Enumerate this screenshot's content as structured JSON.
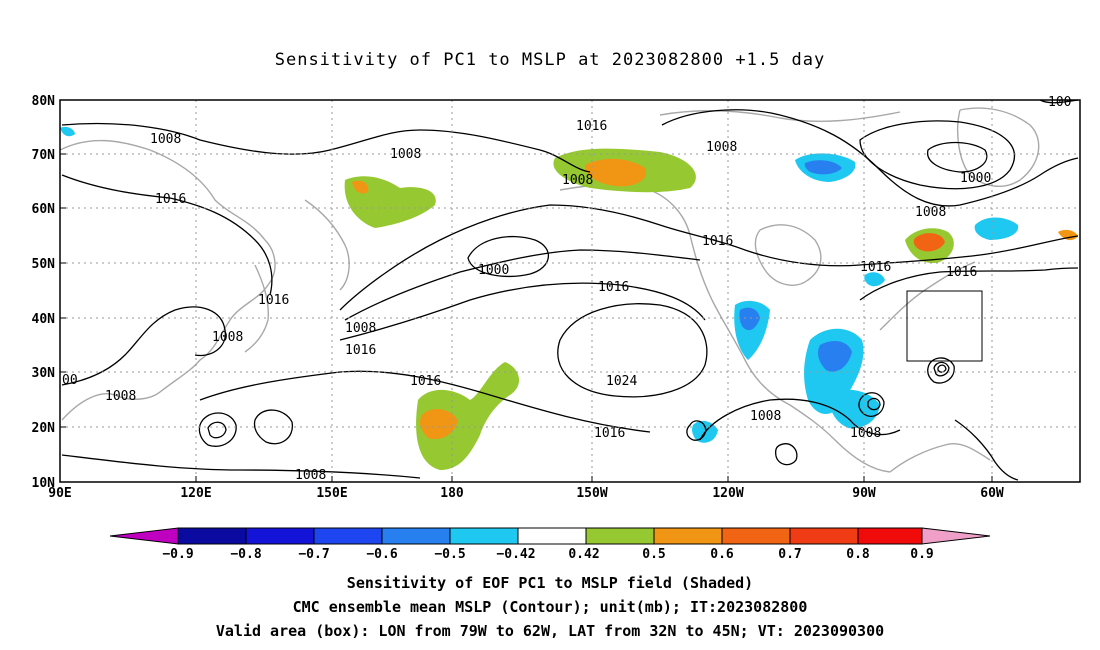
{
  "title": "Sensitivity of PC1 to MSLP at 2023082800 +1.5 day",
  "map": {
    "lon_labels": [
      "90E",
      "120E",
      "150E",
      "180",
      "150W",
      "120W",
      "90W",
      "60W"
    ],
    "lat_labels": [
      "80N",
      "70N",
      "60N",
      "50N",
      "40N",
      "30N",
      "20N",
      "10N"
    ],
    "contour_labels": [
      "1008",
      "1008",
      "1016",
      "1016",
      "1008",
      "1008",
      "1000",
      "1016",
      "1008",
      "1016",
      "1008",
      "1016",
      "1016",
      "1000",
      "1024",
      "1016",
      "1016",
      "1016",
      "1008",
      "1008",
      "1016",
      "1008",
      "1008",
      "00",
      "100"
    ],
    "valid_box": {
      "lon_from": "79W",
      "lon_to": "62W",
      "lat_from": "32N",
      "lat_to": "45N"
    }
  },
  "colorbar": {
    "labels": [
      "−0.9",
      "−0.8",
      "−0.7",
      "−0.6",
      "−0.5",
      "−0.42",
      "0.42",
      "0.5",
      "0.6",
      "0.7",
      "0.8",
      "0.9"
    ],
    "colors": [
      "#c000c0",
      "#0a0aa0",
      "#1414d8",
      "#1e46f0",
      "#2880f0",
      "#1ec8f0",
      "#ffffff",
      "#96c832",
      "#f09614",
      "#f06414",
      "#f03c14",
      "#f00a0a",
      "#f0a0c8"
    ]
  },
  "captions": [
    "Sensitivity of EOF PC1 to MSLP field (Shaded)",
    "CMC ensemble mean MSLP (Contour); unit(mb); IT:2023082800",
    "Valid area (box): LON from 79W to 62W, LAT from 32N to 45N; VT: 2023090300"
  ]
}
